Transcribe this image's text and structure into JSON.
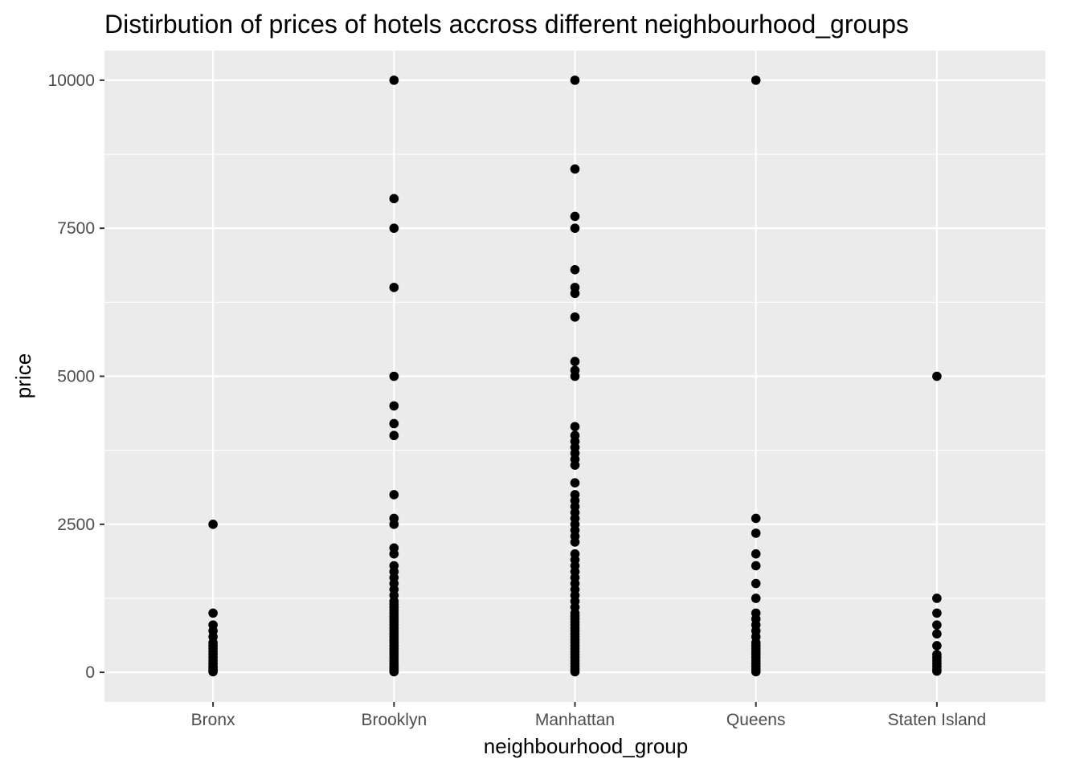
{
  "chart_data": {
    "type": "scatter",
    "title": "Distirbution of prices of hotels accross different neighbourhood_groups",
    "xlabel": "neighbourhood_group",
    "ylabel": "price",
    "categories": [
      "Bronx",
      "Brooklyn",
      "Manhattan",
      "Queens",
      "Staten Island"
    ],
    "ylim": [
      -500,
      10500
    ],
    "yticks": [
      0,
      2500,
      5000,
      7500,
      10000
    ],
    "ytick_labels": [
      "0",
      "2500",
      "5000",
      "7500",
      "10000"
    ],
    "grid": true,
    "colors": {
      "panel": "#ebebeb",
      "grid": "#ffffff",
      "point": "#000000",
      "tick_text": "#4d4d4d"
    },
    "points": [
      {
        "category": "Bronx",
        "values": [
          2500,
          1000,
          800,
          700,
          600,
          500,
          450,
          400,
          350,
          300,
          250,
          200,
          150,
          100,
          75,
          50,
          30,
          10
        ]
      },
      {
        "category": "Brooklyn",
        "values": [
          10000,
          8000,
          7500,
          6500,
          5000,
          4500,
          4200,
          4000,
          3000,
          2600,
          2500,
          2100,
          2000,
          1800,
          1700,
          1600,
          1500,
          1400,
          1300,
          1200,
          1150,
          1100,
          1050,
          1000,
          950,
          900,
          850,
          800,
          750,
          700,
          650,
          600,
          550,
          500,
          450,
          400,
          350,
          300,
          250,
          200,
          150,
          100,
          75,
          50,
          25,
          10
        ]
      },
      {
        "category": "Manhattan",
        "values": [
          10000,
          8500,
          7700,
          7500,
          6800,
          6500,
          6400,
          6000,
          5250,
          5100,
          5000,
          4150,
          4000,
          3900,
          3800,
          3700,
          3600,
          3500,
          3200,
          3000,
          2900,
          2800,
          2700,
          2600,
          2500,
          2400,
          2300,
          2200,
          2000,
          1900,
          1800,
          1700,
          1600,
          1500,
          1400,
          1300,
          1200,
          1100,
          1000,
          950,
          900,
          850,
          800,
          750,
          700,
          650,
          600,
          550,
          500,
          450,
          400,
          350,
          300,
          250,
          200,
          150,
          100,
          50,
          10
        ]
      },
      {
        "category": "Queens",
        "values": [
          10000,
          2600,
          2350,
          2000,
          1800,
          1500,
          1250,
          1000,
          900,
          800,
          700,
          600,
          500,
          450,
          400,
          350,
          300,
          250,
          200,
          150,
          100,
          50,
          10
        ]
      },
      {
        "category": "Staten Island",
        "values": [
          5000,
          1250,
          1000,
          800,
          650,
          450,
          300,
          250,
          200,
          150,
          100,
          50,
          20
        ]
      }
    ]
  }
}
